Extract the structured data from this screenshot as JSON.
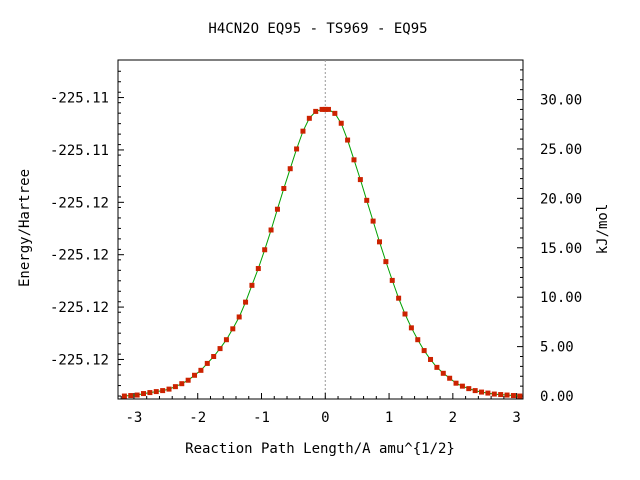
{
  "chart_data": {
    "type": "scatter",
    "title": "H4CN2O   EQ95 - TS969 - EQ95",
    "xlabel": "Reaction Path Length/A amu^{1/2}",
    "ylabel_left": "Energy/Hartree",
    "ylabel_right": "kJ/mol",
    "xlim": [
      -3.25,
      3.1
    ],
    "ylim_right": [
      -0.3,
      34.0
    ],
    "x_ticks": [
      -3,
      -2,
      -1,
      0,
      1,
      2,
      3
    ],
    "x_tick_labels": [
      "-3",
      "-2",
      "-1",
      "0",
      "1",
      "2",
      "3"
    ],
    "left_ticks_kjmol": [
      30.2,
      24.9,
      19.6,
      14.3,
      9.0,
      3.7
    ],
    "left_tick_labels": [
      "-225.11",
      "-225.11",
      "-225.12",
      "-225.12",
      "-225.12",
      "-225.12"
    ],
    "right_ticks": [
      0,
      5,
      10,
      15,
      20,
      25,
      30
    ],
    "right_tick_labels": [
      "0.00",
      "5.00",
      "10.00",
      "15.00",
      "20.00",
      "25.00",
      "30.00"
    ],
    "ts_marker_x": 0,
    "grid": false,
    "curve_color": "#00a000",
    "marker_color": "#cc2200",
    "guide_color": "#999999",
    "series": [
      {
        "x": [
          -3.15,
          -3.05,
          -2.95,
          -2.85,
          -2.75,
          -2.65,
          -2.55,
          -2.45,
          -2.35,
          -2.25,
          -2.15,
          -2.05,
          -1.95,
          -1.85,
          -1.75,
          -1.65,
          -1.55,
          -1.45,
          -1.35,
          -1.25,
          -1.15,
          -1.05,
          -0.95,
          -0.85,
          -0.75,
          -0.65,
          -0.55,
          -0.45,
          -0.35,
          -0.25,
          -0.15,
          -0.05,
          0.0,
          0.05,
          0.15,
          0.25,
          0.35,
          0.45,
          0.55,
          0.65,
          0.75,
          0.85,
          0.95,
          1.05,
          1.15,
          1.25,
          1.35,
          1.45,
          1.55,
          1.65,
          1.75,
          1.85,
          1.95,
          2.05,
          2.15,
          2.25,
          2.35,
          2.45,
          2.55,
          2.65,
          2.75,
          2.85,
          2.95,
          3.05
        ],
        "y": [
          0.0,
          0.05,
          0.1,
          0.25,
          0.35,
          0.45,
          0.55,
          0.7,
          0.95,
          1.25,
          1.6,
          2.1,
          2.6,
          3.3,
          4.0,
          4.8,
          5.7,
          6.8,
          8.0,
          9.5,
          11.2,
          12.9,
          14.8,
          16.8,
          18.9,
          21.0,
          23.0,
          25.0,
          26.8,
          28.1,
          28.8,
          29.0,
          29.0,
          29.0,
          28.6,
          27.6,
          25.9,
          23.9,
          21.9,
          19.8,
          17.7,
          15.6,
          13.6,
          11.7,
          9.9,
          8.3,
          6.9,
          5.7,
          4.6,
          3.7,
          2.9,
          2.3,
          1.8,
          1.3,
          1.0,
          0.75,
          0.55,
          0.4,
          0.3,
          0.2,
          0.15,
          0.1,
          0.05,
          0.0
        ]
      }
    ]
  }
}
